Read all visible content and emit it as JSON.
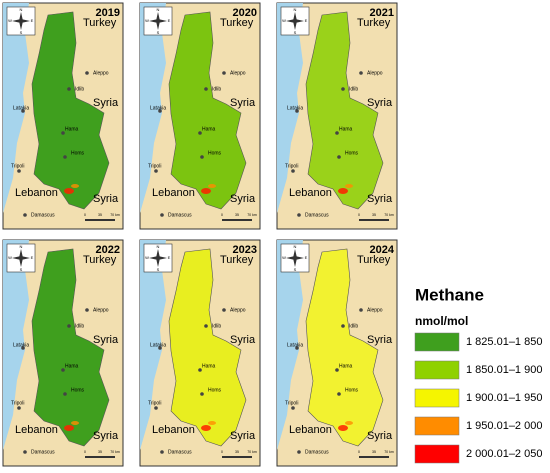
{
  "compass": {
    "n": "N",
    "s": "S",
    "e": "E",
    "w": "W"
  },
  "places": {
    "turkey": "Turkey",
    "syria": "Syria",
    "aleppo": "Aleppo",
    "idlib": "Idlib",
    "latakia": "Latakia",
    "hama": "Hama",
    "homs": "Homs",
    "tripoli": "Tripoli",
    "lebanon": "Lebanon",
    "damascus": "Damascus"
  },
  "scale_labels": [
    "0",
    "35",
    "70 km"
  ],
  "panels": [
    {
      "year": "2019",
      "color": "#3f9f1e"
    },
    {
      "year": "2020",
      "color": "#7cc410"
    },
    {
      "year": "2021",
      "color": "#9ad21a"
    },
    {
      "year": "2022",
      "color": "#3f9f1e"
    },
    {
      "year": "2023",
      "color": "#e8ee20"
    },
    {
      "year": "2024",
      "color": "#f2f230"
    }
  ],
  "legend": {
    "title": "Methane",
    "unit": "nmol/mol",
    "items": [
      {
        "label": "1 825.01–1 850",
        "color": "#3f9f1e"
      },
      {
        "label": "1 850.01–1 900",
        "color": "#8fd100"
      },
      {
        "label": "1 900.01–1 950",
        "color": "#f5f500"
      },
      {
        "label": "1 950.01–2 000",
        "color": "#ff8c00"
      },
      {
        "label": "2 000.01–2 050",
        "color": "#ff0000"
      }
    ]
  }
}
